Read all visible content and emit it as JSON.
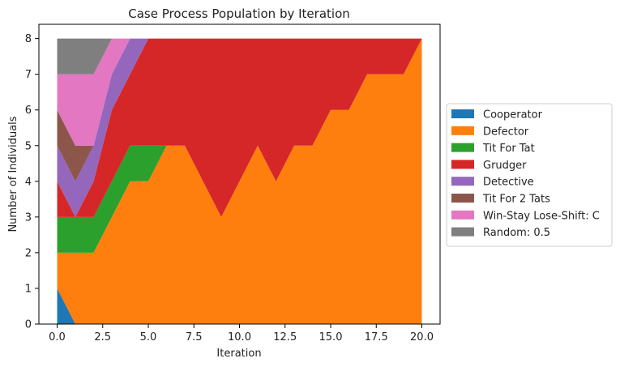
{
  "chart_data": {
    "type": "area",
    "stacked": true,
    "title": "Case Process Population by Iteration",
    "xlabel": "Iteration",
    "ylabel": "Number of Individuals",
    "xlim": [
      -1,
      21
    ],
    "ylim": [
      0,
      8.4
    ],
    "xticks": [
      0,
      2.5,
      5,
      7.5,
      10,
      12.5,
      15,
      17.5,
      20
    ],
    "xtick_labels": [
      "0.0",
      "2.5",
      "5.0",
      "7.5",
      "10.0",
      "12.5",
      "15.0",
      "17.5",
      "20.0"
    ],
    "yticks": [
      0,
      1,
      2,
      3,
      4,
      5,
      6,
      7,
      8
    ],
    "ytick_labels": [
      "0",
      "1",
      "2",
      "3",
      "4",
      "5",
      "6",
      "7",
      "8"
    ],
    "grid": false,
    "legend_position": "right-outside",
    "x": [
      0,
      1,
      2,
      3,
      4,
      5,
      6,
      7,
      8,
      9,
      10,
      11,
      12,
      13,
      14,
      15,
      16,
      17,
      18,
      19,
      20
    ],
    "series": [
      {
        "name": "Cooperator",
        "color": "#1f77b4",
        "values": [
          1,
          0,
          0,
          0,
          0,
          0,
          0,
          0,
          0,
          0,
          0,
          0,
          0,
          0,
          0,
          0,
          0,
          0,
          0,
          0,
          0
        ]
      },
      {
        "name": "Defector",
        "color": "#ff7f0e",
        "values": [
          1,
          2,
          2,
          3,
          4,
          4,
          5,
          5,
          4,
          3,
          4,
          5,
          4,
          5,
          5,
          6,
          6,
          7,
          7,
          7,
          8
        ]
      },
      {
        "name": "Tit For Tat",
        "color": "#2ca02c",
        "values": [
          1,
          1,
          1,
          1,
          1,
          1,
          0,
          0,
          0,
          0,
          0,
          0,
          0,
          0,
          0,
          0,
          0,
          0,
          0,
          0,
          0
        ]
      },
      {
        "name": "Grudger",
        "color": "#d62728",
        "values": [
          1,
          0,
          1,
          2,
          2,
          3,
          3,
          3,
          4,
          5,
          4,
          3,
          4,
          3,
          3,
          2,
          2,
          1,
          1,
          1,
          0
        ]
      },
      {
        "name": "Detective",
        "color": "#9467bd",
        "values": [
          1,
          1,
          1,
          1,
          1,
          0,
          0,
          0,
          0,
          0,
          0,
          0,
          0,
          0,
          0,
          0,
          0,
          0,
          0,
          0,
          0
        ]
      },
      {
        "name": "Tit For 2 Tats",
        "color": "#8c564b",
        "values": [
          1,
          1,
          0,
          0,
          0,
          0,
          0,
          0,
          0,
          0,
          0,
          0,
          0,
          0,
          0,
          0,
          0,
          0,
          0,
          0,
          0
        ]
      },
      {
        "name": "Win-Stay Lose-Shift: C",
        "color": "#e377c2",
        "values": [
          1,
          2,
          2,
          1,
          0,
          0,
          0,
          0,
          0,
          0,
          0,
          0,
          0,
          0,
          0,
          0,
          0,
          0,
          0,
          0,
          0
        ]
      },
      {
        "name": "Random: 0.5",
        "color": "#7f7f7f",
        "values": [
          1,
          1,
          1,
          0,
          0,
          0,
          0,
          0,
          0,
          0,
          0,
          0,
          0,
          0,
          0,
          0,
          0,
          0,
          0,
          0,
          0
        ]
      }
    ]
  }
}
